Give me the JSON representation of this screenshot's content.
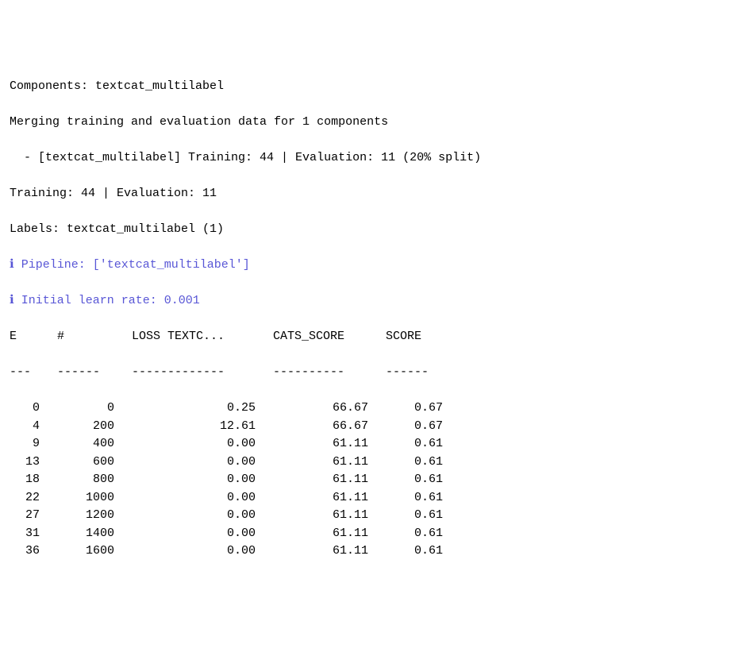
{
  "lines": {
    "components": "Components: textcat_multilabel",
    "merging": "Merging training and evaluation data for 1 components",
    "split_detail": "  - [textcat_multilabel] Training: 44 | Evaluation: 11 (20% split)",
    "train_eval": "Training: 44 | Evaluation: 11",
    "labels": "Labels: textcat_multilabel (1)"
  },
  "info_lines": {
    "pipeline": "ℹ Pipeline: ['textcat_multilabel']",
    "learn_rate": "ℹ Initial learn rate: 0.001"
  },
  "table": {
    "headers": {
      "e": "E",
      "hash": "#",
      "loss": "LOSS TEXTC...",
      "cats": "CATS_SCORE",
      "score": "SCORE"
    },
    "separators": {
      "e": "---",
      "hash": "------",
      "loss": "-------------",
      "cats": "----------",
      "score": "------"
    },
    "rows": [
      {
        "e": "0",
        "hash": "0",
        "loss": "0.25",
        "cats": "66.67",
        "score": "0.67"
      },
      {
        "e": "4",
        "hash": "200",
        "loss": "12.61",
        "cats": "66.67",
        "score": "0.67"
      },
      {
        "e": "9",
        "hash": "400",
        "loss": "0.00",
        "cats": "61.11",
        "score": "0.61"
      },
      {
        "e": "13",
        "hash": "600",
        "loss": "0.00",
        "cats": "61.11",
        "score": "0.61"
      },
      {
        "e": "18",
        "hash": "800",
        "loss": "0.00",
        "cats": "61.11",
        "score": "0.61"
      },
      {
        "e": "22",
        "hash": "1000",
        "loss": "0.00",
        "cats": "61.11",
        "score": "0.61"
      },
      {
        "e": "27",
        "hash": "1200",
        "loss": "0.00",
        "cats": "61.11",
        "score": "0.61"
      },
      {
        "e": "31",
        "hash": "1400",
        "loss": "0.00",
        "cats": "61.11",
        "score": "0.61"
      },
      {
        "e": "36",
        "hash": "1600",
        "loss": "0.00",
        "cats": "61.11",
        "score": "0.61"
      }
    ]
  },
  "colors": {
    "text": "#000000",
    "info": "#5856d6",
    "background": "#ffffff"
  }
}
